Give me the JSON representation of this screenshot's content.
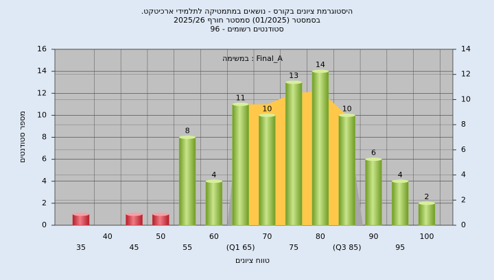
{
  "chart_data": {
    "type": "bar",
    "title": "היסטוגרמת ציונים בקורס - נושאים במתמטיקה לתלמידי ארכיטקט.",
    "subtitle": "בסמסטר  (01/2025)  סמסטר חורף 2025/26",
    "subtitle2": "סטודנטים רשומים - 96",
    "annotation": "במשימה : Final_A",
    "x_label": "טווח ציונים",
    "y_label": "מספר סטודנטים",
    "categories": [
      "35",
      "40",
      "45",
      "50",
      "55",
      "60",
      "(Q1 65)",
      "70",
      "75",
      "80",
      "(Q3 85)",
      "90",
      "95",
      "100"
    ],
    "values": [
      1,
      0,
      1,
      1,
      8,
      4,
      11,
      10,
      13,
      14,
      10,
      6,
      4,
      2
    ],
    "value_labels": [
      null,
      null,
      null,
      null,
      "8",
      "4",
      "11",
      "10",
      "13",
      "14",
      "10",
      "6",
      "4",
      "2"
    ],
    "colors": [
      "#d8303c",
      "#d8303c",
      "#d8303c",
      "#d8303c",
      "#8fbf3f",
      "#8fbf3f",
      "#8fbf3f",
      "#8fbf3f",
      "#8fbf3f",
      "#8fbf3f",
      "#8fbf3f",
      "#8fbf3f",
      "#8fbf3f",
      "#8fbf3f"
    ],
    "area": {
      "x": [
        5.5,
        6,
        7,
        8,
        9,
        10,
        10.6
      ],
      "values": [
        0,
        11,
        11,
        12,
        12.2,
        10,
        0
      ],
      "color": "#a6a6a6",
      "highlight_color": "#ffc84a",
      "highlight_range": [
        6,
        10
      ]
    },
    "ylim": [
      0,
      16
    ],
    "yticks": [
      0,
      2,
      4,
      6,
      8,
      10,
      12,
      14,
      16
    ],
    "y2lim": [
      0,
      14
    ],
    "y2ticks": [
      0,
      2,
      4,
      6,
      8,
      10,
      12,
      14
    ],
    "grid": true
  }
}
